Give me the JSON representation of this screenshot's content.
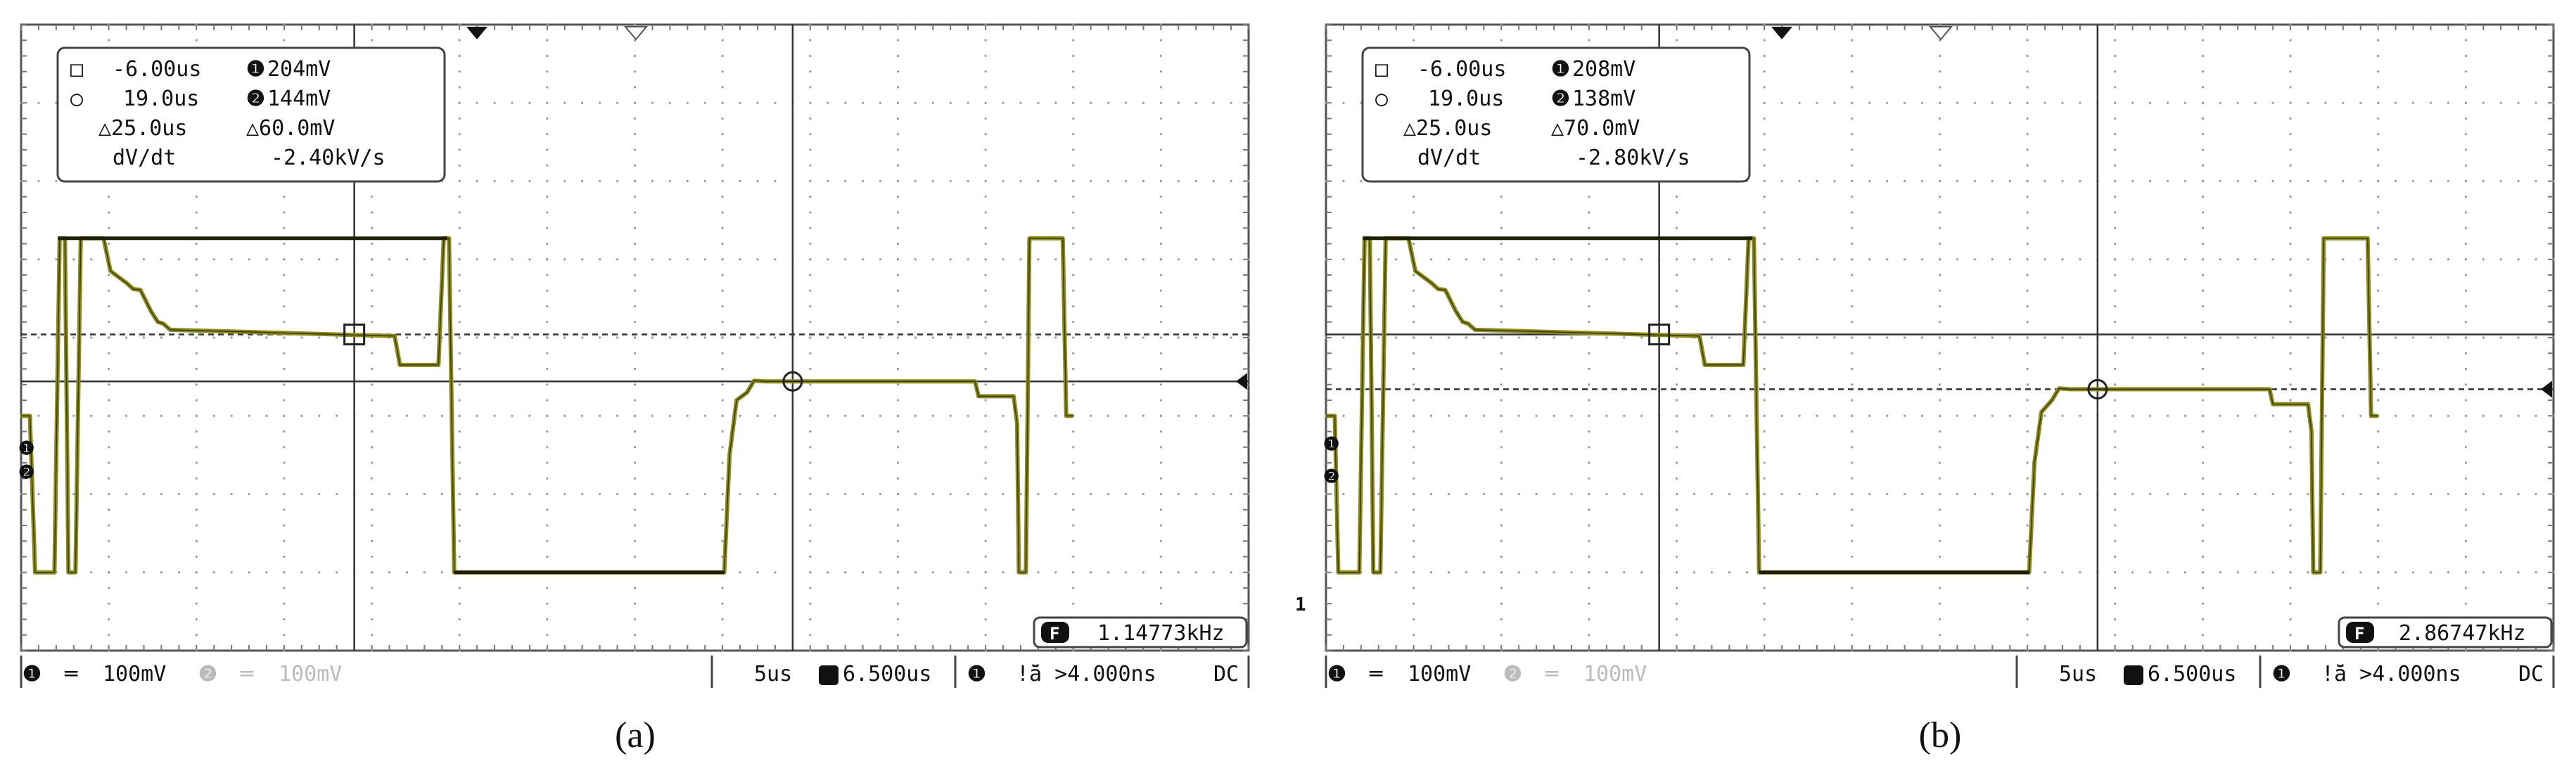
{
  "chart_data": [
    {
      "type": "line",
      "caption": "(a)",
      "time_per_div": "5us",
      "horizontal_position": "6.500us",
      "x_range_us": [
        -25,
        45
      ],
      "y_range_div": [
        -4,
        4
      ],
      "channels": [
        {
          "id": "1",
          "label": "❶",
          "coupling": "═",
          "volts_per_div": "100mV",
          "active": true
        },
        {
          "id": "2",
          "label": "❷",
          "coupling": "═",
          "volts_per_div": "100mV",
          "active": false
        }
      ],
      "trigger": {
        "source": "❶",
        "condition": "ǃ̆ā >4.000ns",
        "coupling": "DC"
      },
      "frequency": "1.14773kHz",
      "frequency_badge": "F",
      "cursors": {
        "cursor1": {
          "symbol": "□",
          "time": "-6.00us",
          "channel_label": "❶",
          "value": "204mV"
        },
        "cursor2": {
          "symbol": "○",
          "time": "19.0us",
          "channel_label": "❷",
          "value": "144mV"
        },
        "delta_time": "△25.0us",
        "delta_value": "△60.0mV",
        "rate_label": "dV/dt",
        "rate_value": "-2.40kV/s"
      },
      "cursor_levels_div": {
        "cursor1": 0.04,
        "cursor2": -0.56
      },
      "waveform": {
        "unit": "x in us, y in div",
        "points": [
          [
            -25,
            -1.0
          ],
          [
            -24.5,
            -1.0
          ],
          [
            -24.2,
            -3.0
          ],
          [
            -23.1,
            -3.0
          ],
          [
            -22.8,
            1.27
          ],
          [
            -22.5,
            1.27
          ],
          [
            -22.3,
            -3.0
          ],
          [
            -21.9,
            -3.0
          ],
          [
            -21.6,
            1.27
          ],
          [
            -20.3,
            1.27
          ],
          [
            -19.9,
            0.85
          ],
          [
            -19.0,
            0.7
          ],
          [
            -18.6,
            0.62
          ],
          [
            -18.2,
            0.61
          ],
          [
            -17.6,
            0.34
          ],
          [
            -17.2,
            0.2
          ],
          [
            -16.9,
            0.18
          ],
          [
            -16.5,
            0.1
          ],
          [
            -3.7,
            0.02
          ],
          [
            -3.4,
            -0.35
          ],
          [
            -1.2,
            -0.35
          ],
          [
            -0.9,
            1.27
          ],
          [
            -0.6,
            1.27
          ],
          [
            -0.3,
            -3.0
          ],
          [
            15.1,
            -3.0
          ],
          [
            15.4,
            -1.5
          ],
          [
            15.8,
            -0.8
          ],
          [
            16.4,
            -0.7
          ],
          [
            16.8,
            -0.55
          ],
          [
            17.4,
            -0.56
          ],
          [
            19,
            -0.56
          ],
          [
            29.4,
            -0.56
          ],
          [
            29.6,
            -0.75
          ],
          [
            31.6,
            -0.75
          ],
          [
            31.8,
            -1.1
          ],
          [
            31.9,
            -3.0
          ],
          [
            32.3,
            -3.0
          ],
          [
            32.5,
            1.27
          ],
          [
            34.4,
            1.27
          ],
          [
            34.6,
            -1.0
          ],
          [
            35,
            -1.0
          ]
        ],
        "upper_trace": [
          [
            -22.9,
            1.27
          ],
          [
            -0.7,
            1.27
          ]
        ]
      },
      "waveform_window_us": [
        -25,
        35
      ]
    },
    {
      "type": "line",
      "caption": "(b)",
      "time_per_div": "5us",
      "horizontal_position": "6.500us",
      "x_range_us": [
        -25,
        45
      ],
      "y_range_div": [
        -4,
        4
      ],
      "channels": [
        {
          "id": "1",
          "label": "❶",
          "coupling": "═",
          "volts_per_div": "100mV",
          "active": true
        },
        {
          "id": "2",
          "label": "❷",
          "coupling": "═",
          "volts_per_div": "100mV",
          "active": false
        }
      ],
      "trigger": {
        "source": "❶",
        "condition": "ǃ̆ā >4.000ns",
        "coupling": "DC"
      },
      "frequency": "2.86747kHz",
      "frequency_badge": "F",
      "cursors": {
        "cursor1": {
          "symbol": "□",
          "time": "-6.00us",
          "channel_label": "❶",
          "value": "208mV"
        },
        "cursor2": {
          "symbol": "○",
          "time": "19.0us",
          "channel_label": "❷",
          "value": "138mV"
        },
        "delta_time": "△25.0us",
        "delta_value": "△70.0mV",
        "rate_label": "dV/dt",
        "rate_value": "-2.80kV/s"
      },
      "cursor_levels_div": {
        "cursor1": 0.04,
        "cursor2": -0.66
      },
      "waveform": {
        "unit": "x in us, y in div",
        "points": [
          [
            -25,
            -1.0
          ],
          [
            -24.5,
            -1.0
          ],
          [
            -24.3,
            -3.0
          ],
          [
            -23.1,
            -3.0
          ],
          [
            -22.8,
            1.27
          ],
          [
            -22.5,
            1.27
          ],
          [
            -22.3,
            -3.0
          ],
          [
            -21.9,
            -3.0
          ],
          [
            -21.6,
            1.27
          ],
          [
            -20.3,
            1.27
          ],
          [
            -19.9,
            0.85
          ],
          [
            -19.0,
            0.7
          ],
          [
            -18.6,
            0.62
          ],
          [
            -18.2,
            0.61
          ],
          [
            -17.6,
            0.34
          ],
          [
            -17.2,
            0.2
          ],
          [
            -16.9,
            0.18
          ],
          [
            -16.5,
            0.1
          ],
          [
            -3.7,
            0.02
          ],
          [
            -3.4,
            -0.35
          ],
          [
            -1.2,
            -0.35
          ],
          [
            -0.9,
            1.27
          ],
          [
            -0.6,
            1.27
          ],
          [
            -0.3,
            -3.0
          ],
          [
            15.1,
            -3.0
          ],
          [
            15.4,
            -1.6
          ],
          [
            15.8,
            -0.95
          ],
          [
            16.4,
            -0.8
          ],
          [
            16.8,
            -0.65
          ],
          [
            17.4,
            -0.66
          ],
          [
            19,
            -0.66
          ],
          [
            28.8,
            -0.66
          ],
          [
            29.0,
            -0.85
          ],
          [
            31.0,
            -0.85
          ],
          [
            31.2,
            -1.2
          ],
          [
            31.3,
            -3.0
          ],
          [
            31.7,
            -3.0
          ],
          [
            31.9,
            1.27
          ],
          [
            34.4,
            1.27
          ],
          [
            34.6,
            -1.0
          ],
          [
            35,
            -1.0
          ]
        ],
        "upper_trace": [
          [
            -22.9,
            1.27
          ],
          [
            -0.7,
            1.27
          ]
        ]
      },
      "waveform_window_us": [
        -25,
        35
      ]
    }
  ]
}
